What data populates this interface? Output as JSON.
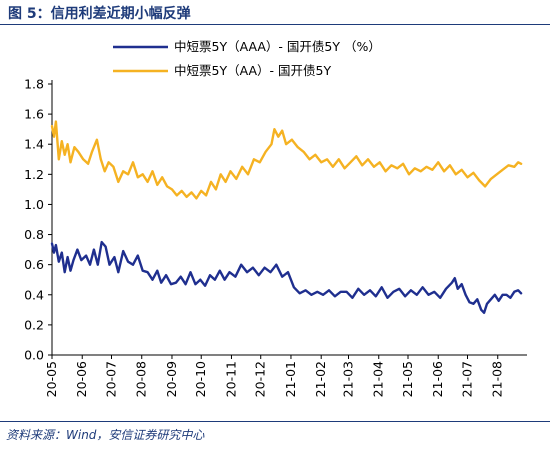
{
  "figure": {
    "title": "图 5：信用利差近期小幅反弹",
    "source": "资料来源：Wind，安信证券研究中心"
  },
  "chart_data": {
    "type": "line",
    "ylim": [
      0,
      1.8
    ],
    "yticks": [
      0.0,
      0.2,
      0.4,
      0.6,
      0.8,
      1.0,
      1.2,
      1.4,
      1.6,
      1.8
    ],
    "ytick_labels": [
      "0.0",
      "0.2",
      "0.4",
      "0.6",
      "0.8",
      "1.0",
      "1.2",
      "1.4",
      "1.6",
      "1.8"
    ],
    "x_range": [
      "2020-05-01",
      "2021-08-31"
    ],
    "x_tick_labels": [
      "20-05",
      "20-06",
      "20-07",
      "20-08",
      "20-09",
      "20-10",
      "20-11",
      "20-12",
      "21-01",
      "21-02",
      "21-03",
      "21-04",
      "21-05",
      "21-06",
      "21-07",
      "21-08"
    ],
    "grid": false,
    "legend_position": "top-center",
    "series": [
      {
        "name": "中短票5Y（AAA）- 国开债5Y （%）",
        "color": "#1f2f8f",
        "points": [
          [
            "2020-05-01",
            0.74
          ],
          [
            "2020-05-03",
            0.68
          ],
          [
            "2020-05-05",
            0.73
          ],
          [
            "2020-05-08",
            0.62
          ],
          [
            "2020-05-11",
            0.68
          ],
          [
            "2020-05-14",
            0.55
          ],
          [
            "2020-05-17",
            0.65
          ],
          [
            "2020-05-20",
            0.56
          ],
          [
            "2020-05-23",
            0.63
          ],
          [
            "2020-05-27",
            0.7
          ],
          [
            "2020-05-31",
            0.63
          ],
          [
            "2020-06-05",
            0.66
          ],
          [
            "2020-06-09",
            0.6
          ],
          [
            "2020-06-13",
            0.7
          ],
          [
            "2020-06-17",
            0.6
          ],
          [
            "2020-06-21",
            0.75
          ],
          [
            "2020-06-25",
            0.72
          ],
          [
            "2020-06-29",
            0.6
          ],
          [
            "2020-07-04",
            0.65
          ],
          [
            "2020-07-08",
            0.55
          ],
          [
            "2020-07-13",
            0.69
          ],
          [
            "2020-07-18",
            0.62
          ],
          [
            "2020-07-23",
            0.6
          ],
          [
            "2020-07-28",
            0.66
          ],
          [
            "2020-08-02",
            0.56
          ],
          [
            "2020-08-07",
            0.55
          ],
          [
            "2020-08-12",
            0.5
          ],
          [
            "2020-08-17",
            0.56
          ],
          [
            "2020-08-21",
            0.48
          ],
          [
            "2020-08-26",
            0.53
          ],
          [
            "2020-08-31",
            0.47
          ],
          [
            "2020-09-05",
            0.48
          ],
          [
            "2020-09-10",
            0.52
          ],
          [
            "2020-09-15",
            0.47
          ],
          [
            "2020-09-20",
            0.55
          ],
          [
            "2020-09-25",
            0.47
          ],
          [
            "2020-09-30",
            0.5
          ],
          [
            "2020-10-05",
            0.46
          ],
          [
            "2020-10-10",
            0.53
          ],
          [
            "2020-10-15",
            0.5
          ],
          [
            "2020-10-20",
            0.56
          ],
          [
            "2020-10-25",
            0.5
          ],
          [
            "2020-10-30",
            0.55
          ],
          [
            "2020-11-05",
            0.52
          ],
          [
            "2020-11-11",
            0.6
          ],
          [
            "2020-11-17",
            0.55
          ],
          [
            "2020-11-23",
            0.58
          ],
          [
            "2020-11-29",
            0.53
          ],
          [
            "2020-12-05",
            0.58
          ],
          [
            "2020-12-11",
            0.55
          ],
          [
            "2020-12-17",
            0.6
          ],
          [
            "2020-12-23",
            0.52
          ],
          [
            "2020-12-29",
            0.55
          ],
          [
            "2021-01-04",
            0.45
          ],
          [
            "2021-01-10",
            0.41
          ],
          [
            "2021-01-16",
            0.43
          ],
          [
            "2021-01-22",
            0.4
          ],
          [
            "2021-01-28",
            0.42
          ],
          [
            "2021-02-03",
            0.4
          ],
          [
            "2021-02-09",
            0.43
          ],
          [
            "2021-02-15",
            0.39
          ],
          [
            "2021-02-21",
            0.42
          ],
          [
            "2021-02-27",
            0.42
          ],
          [
            "2021-03-05",
            0.38
          ],
          [
            "2021-03-11",
            0.44
          ],
          [
            "2021-03-17",
            0.4
          ],
          [
            "2021-03-23",
            0.43
          ],
          [
            "2021-03-29",
            0.39
          ],
          [
            "2021-04-04",
            0.45
          ],
          [
            "2021-04-10",
            0.38
          ],
          [
            "2021-04-16",
            0.42
          ],
          [
            "2021-04-22",
            0.44
          ],
          [
            "2021-04-28",
            0.39
          ],
          [
            "2021-05-04",
            0.43
          ],
          [
            "2021-05-10",
            0.4
          ],
          [
            "2021-05-16",
            0.45
          ],
          [
            "2021-05-22",
            0.4
          ],
          [
            "2021-05-28",
            0.42
          ],
          [
            "2021-06-03",
            0.38
          ],
          [
            "2021-06-09",
            0.44
          ],
          [
            "2021-06-15",
            0.48
          ],
          [
            "2021-06-18",
            0.51
          ],
          [
            "2021-06-21",
            0.44
          ],
          [
            "2021-06-25",
            0.47
          ],
          [
            "2021-06-29",
            0.4
          ],
          [
            "2021-07-03",
            0.35
          ],
          [
            "2021-07-07",
            0.34
          ],
          [
            "2021-07-11",
            0.37
          ],
          [
            "2021-07-15",
            0.3
          ],
          [
            "2021-07-18",
            0.28
          ],
          [
            "2021-07-21",
            0.34
          ],
          [
            "2021-07-25",
            0.37
          ],
          [
            "2021-07-29",
            0.4
          ],
          [
            "2021-08-02",
            0.36
          ],
          [
            "2021-08-06",
            0.4
          ],
          [
            "2021-08-10",
            0.4
          ],
          [
            "2021-08-14",
            0.38
          ],
          [
            "2021-08-18",
            0.42
          ],
          [
            "2021-08-22",
            0.43
          ],
          [
            "2021-08-25",
            0.41
          ]
        ]
      },
      {
        "name": "中短票5Y（AA）- 国开债5Y",
        "color": "#f5b222",
        "points": [
          [
            "2020-05-01",
            1.52
          ],
          [
            "2020-05-03",
            1.45
          ],
          [
            "2020-05-05",
            1.55
          ],
          [
            "2020-05-08",
            1.3
          ],
          [
            "2020-05-11",
            1.42
          ],
          [
            "2020-05-14",
            1.33
          ],
          [
            "2020-05-17",
            1.4
          ],
          [
            "2020-05-20",
            1.28
          ],
          [
            "2020-05-24",
            1.38
          ],
          [
            "2020-05-28",
            1.35
          ],
          [
            "2020-06-02",
            1.3
          ],
          [
            "2020-06-07",
            1.27
          ],
          [
            "2020-06-11",
            1.35
          ],
          [
            "2020-06-16",
            1.43
          ],
          [
            "2020-06-20",
            1.3
          ],
          [
            "2020-06-24",
            1.22
          ],
          [
            "2020-06-28",
            1.28
          ],
          [
            "2020-07-03",
            1.25
          ],
          [
            "2020-07-08",
            1.15
          ],
          [
            "2020-07-13",
            1.22
          ],
          [
            "2020-07-18",
            1.2
          ],
          [
            "2020-07-23",
            1.28
          ],
          [
            "2020-07-28",
            1.18
          ],
          [
            "2020-08-02",
            1.2
          ],
          [
            "2020-08-07",
            1.15
          ],
          [
            "2020-08-12",
            1.22
          ],
          [
            "2020-08-17",
            1.13
          ],
          [
            "2020-08-22",
            1.18
          ],
          [
            "2020-08-27",
            1.12
          ],
          [
            "2020-09-01",
            1.1
          ],
          [
            "2020-09-06",
            1.06
          ],
          [
            "2020-09-11",
            1.09
          ],
          [
            "2020-09-16",
            1.05
          ],
          [
            "2020-09-21",
            1.08
          ],
          [
            "2020-09-26",
            1.04
          ],
          [
            "2020-10-01",
            1.09
          ],
          [
            "2020-10-06",
            1.06
          ],
          [
            "2020-10-11",
            1.15
          ],
          [
            "2020-10-16",
            1.1
          ],
          [
            "2020-10-21",
            1.2
          ],
          [
            "2020-10-26",
            1.15
          ],
          [
            "2020-10-31",
            1.22
          ],
          [
            "2020-11-06",
            1.17
          ],
          [
            "2020-11-12",
            1.25
          ],
          [
            "2020-11-18",
            1.2
          ],
          [
            "2020-11-24",
            1.3
          ],
          [
            "2020-11-30",
            1.28
          ],
          [
            "2020-12-06",
            1.35
          ],
          [
            "2020-12-12",
            1.4
          ],
          [
            "2020-12-15",
            1.5
          ],
          [
            "2020-12-19",
            1.45
          ],
          [
            "2020-12-23",
            1.49
          ],
          [
            "2020-12-27",
            1.4
          ],
          [
            "2021-01-02",
            1.43
          ],
          [
            "2021-01-08",
            1.38
          ],
          [
            "2021-01-14",
            1.35
          ],
          [
            "2021-01-20",
            1.3
          ],
          [
            "2021-01-26",
            1.33
          ],
          [
            "2021-02-01",
            1.28
          ],
          [
            "2021-02-07",
            1.3
          ],
          [
            "2021-02-13",
            1.25
          ],
          [
            "2021-02-19",
            1.3
          ],
          [
            "2021-02-25",
            1.24
          ],
          [
            "2021-03-03",
            1.28
          ],
          [
            "2021-03-09",
            1.32
          ],
          [
            "2021-03-15",
            1.26
          ],
          [
            "2021-03-21",
            1.3
          ],
          [
            "2021-03-27",
            1.25
          ],
          [
            "2021-04-02",
            1.28
          ],
          [
            "2021-04-08",
            1.22
          ],
          [
            "2021-04-14",
            1.26
          ],
          [
            "2021-04-20",
            1.24
          ],
          [
            "2021-04-26",
            1.27
          ],
          [
            "2021-05-02",
            1.2
          ],
          [
            "2021-05-08",
            1.24
          ],
          [
            "2021-05-14",
            1.22
          ],
          [
            "2021-05-20",
            1.25
          ],
          [
            "2021-05-26",
            1.23
          ],
          [
            "2021-06-01",
            1.28
          ],
          [
            "2021-06-07",
            1.22
          ],
          [
            "2021-06-13",
            1.26
          ],
          [
            "2021-06-19",
            1.2
          ],
          [
            "2021-06-25",
            1.23
          ],
          [
            "2021-07-01",
            1.18
          ],
          [
            "2021-07-07",
            1.21
          ],
          [
            "2021-07-13",
            1.16
          ],
          [
            "2021-07-19",
            1.12
          ],
          [
            "2021-07-25",
            1.17
          ],
          [
            "2021-07-31",
            1.2
          ],
          [
            "2021-08-06",
            1.23
          ],
          [
            "2021-08-12",
            1.26
          ],
          [
            "2021-08-18",
            1.25
          ],
          [
            "2021-08-22",
            1.28
          ],
          [
            "2021-08-25",
            1.27
          ]
        ]
      }
    ]
  }
}
